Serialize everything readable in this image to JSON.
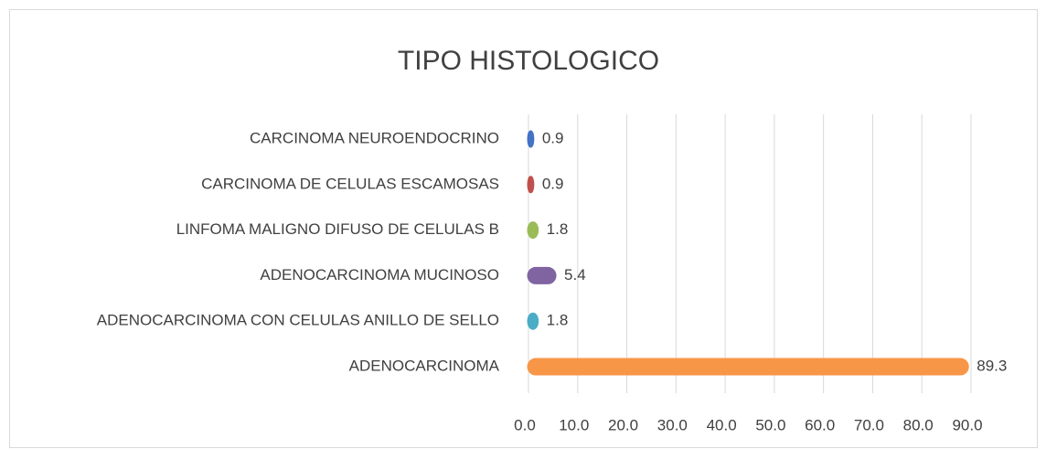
{
  "chart_data": {
    "type": "barh",
    "title": "TIPO HISTOLOGICO",
    "categories": [
      "CARCINOMA NEUROENDOCRINO",
      "CARCINOMA DE CELULAS ESCAMOSAS",
      "LINFOMA MALIGNO DIFUSO DE CELULAS B",
      "ADENOCARCINOMA MUCINOSO",
      "ADENOCARCINOMA CON CELULAS ANILLO DE SELLO",
      "ADENOCARCINOMA"
    ],
    "values": [
      0.9,
      0.9,
      1.8,
      5.4,
      1.8,
      89.3
    ],
    "colors": [
      "#4472c4",
      "#c0504d",
      "#9bbb59",
      "#8064a2",
      "#4bacc6",
      "#f79646"
    ],
    "xlim": [
      0,
      90
    ],
    "xticks": [
      {
        "value": 0,
        "label": "0.0"
      },
      {
        "value": 10,
        "label": "10.0"
      },
      {
        "value": 20,
        "label": "20.0"
      },
      {
        "value": 30,
        "label": "30.0"
      },
      {
        "value": 40,
        "label": "40.0"
      },
      {
        "value": 50,
        "label": "50.0"
      },
      {
        "value": 60,
        "label": "60.0"
      },
      {
        "value": 70,
        "label": "70.0"
      },
      {
        "value": 80,
        "label": "80.0"
      },
      {
        "value": 90,
        "label": "90.0"
      }
    ],
    "grid": true
  }
}
